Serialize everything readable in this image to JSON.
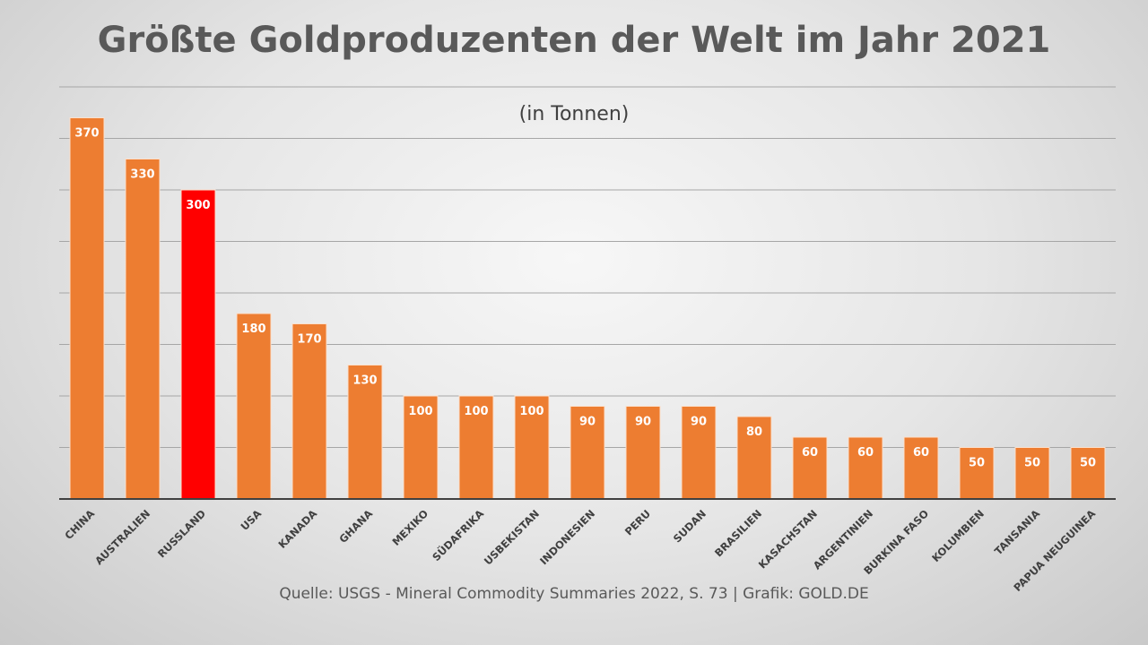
{
  "chart_data": {
    "type": "bar",
    "title": "Größte Goldproduzenten der Welt im Jahr 2021",
    "subtitle": "(in Tonnen)",
    "source": "Quelle: USGS - Mineral Commodity Summaries 2022, S. 73 | Grafik: GOLD.DE",
    "categories": [
      "CHINA",
      "AUSTRALIEN",
      "RUSSLAND",
      "USA",
      "KANADA",
      "GHANA",
      "MEXIKO",
      "SÜDAFRIKA",
      "USBEKISTAN",
      "INDONESIEN",
      "PERU",
      "SUDAN",
      "BRASILIEN",
      "KASACHSTAN",
      "ARGENTINIEN",
      "BURKINA FASO",
      "KOLUMBIEN",
      "TANSANIA",
      "PAPUA NEUGUINEA"
    ],
    "values": [
      370,
      330,
      300,
      180,
      170,
      130,
      100,
      100,
      100,
      90,
      90,
      90,
      80,
      60,
      60,
      60,
      50,
      50,
      50
    ],
    "ylim": [
      0,
      400
    ],
    "gridlines": true,
    "grid_step": 50,
    "data_labels": true,
    "colors": {
      "default": "#ED7D31",
      "highlight": "#FF0000"
    },
    "highlight_category": "RUSSLAND"
  }
}
